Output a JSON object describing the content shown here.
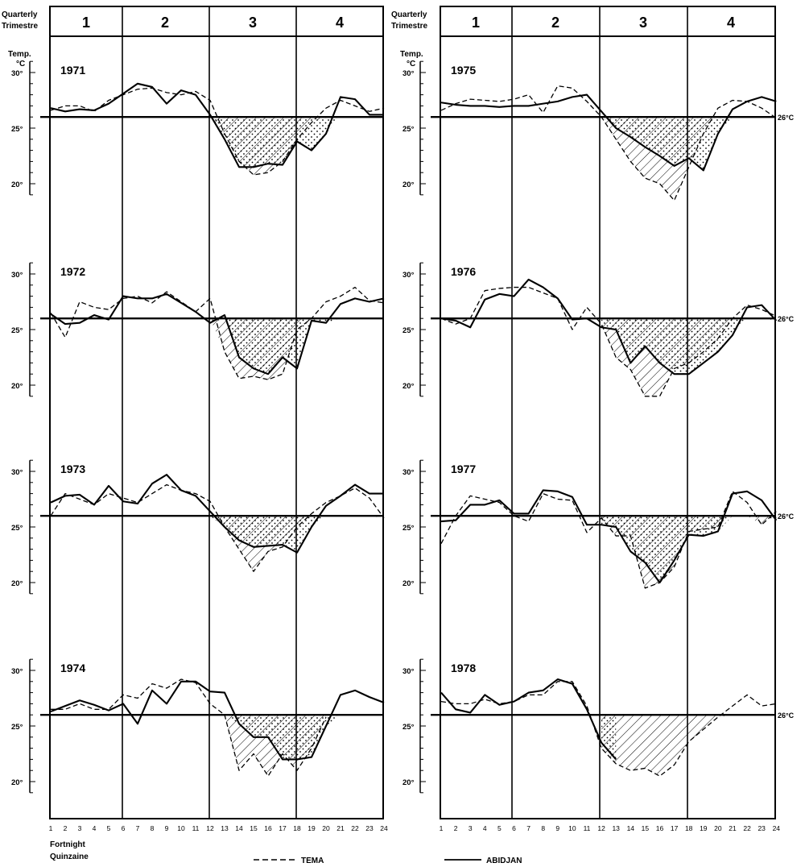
{
  "header": {
    "quarter_label_en": "Quarterly",
    "quarter_label_fr": "Trimestre",
    "quarters": [
      "1",
      "2",
      "3",
      "4"
    ]
  },
  "axis": {
    "temp_label": "Temp.",
    "temp_unit": "°C",
    "reference_label": "26°C",
    "x_label_en": "Fortnight",
    "x_label_fr": "Quinzaine"
  },
  "legend": {
    "tema": "TEMA",
    "abidjan": "ABIDJAN"
  },
  "colors": {
    "ink": "#000000",
    "background": "#ffffff"
  },
  "chart_data": [
    {
      "type": "line",
      "year": "1971",
      "column": "left",
      "row": 0,
      "reference": 26,
      "ylim": [
        19,
        31
      ],
      "ticks": [
        "30°",
        "25°",
        "20°"
      ],
      "show_ref_label": false,
      "x": [
        1,
        2,
        3,
        4,
        5,
        6,
        7,
        8,
        9,
        10,
        11,
        12,
        13,
        14,
        15,
        16,
        17,
        18,
        19,
        20,
        21,
        22,
        23,
        24
      ],
      "series": [
        {
          "name": "TEMA",
          "style": "dashed",
          "values": [
            26.6,
            27.0,
            27.0,
            26.5,
            27.5,
            28.0,
            28.5,
            28.6,
            28.2,
            28.0,
            28.3,
            27.5,
            24.5,
            22.0,
            20.8,
            21.0,
            22.0,
            24.0,
            25.5,
            26.8,
            27.5,
            27.0,
            26.5,
            26.8
          ]
        },
        {
          "name": "ABIDJAN",
          "style": "solid",
          "values": [
            26.8,
            26.5,
            26.7,
            26.6,
            27.2,
            28.1,
            29.0,
            28.7,
            27.2,
            28.4,
            28.0,
            26.2,
            24.0,
            21.5,
            21.5,
            21.8,
            21.7,
            23.8,
            23.0,
            24.5,
            27.8,
            27.6,
            26.2,
            26.2
          ]
        }
      ]
    },
    {
      "type": "line",
      "year": "1972",
      "column": "left",
      "row": 1,
      "reference": 26,
      "ylim": [
        19,
        31
      ],
      "ticks": [
        "30°",
        "25°",
        "20°"
      ],
      "show_ref_label": false,
      "x": [
        1,
        2,
        3,
        4,
        5,
        6,
        7,
        8,
        9,
        10,
        11,
        12,
        13,
        14,
        15,
        16,
        17,
        18,
        19,
        20,
        21,
        22,
        23,
        24
      ],
      "series": [
        {
          "name": "TEMA",
          "style": "dashed",
          "values": [
            26.5,
            24.3,
            27.5,
            27.0,
            26.8,
            27.8,
            28.0,
            27.4,
            28.4,
            27.5,
            26.6,
            27.8,
            23.0,
            20.6,
            20.8,
            20.5,
            21.0,
            25.0,
            26.0,
            27.5,
            28.0,
            28.8,
            27.6,
            27.4
          ]
        },
        {
          "name": "ABIDJAN",
          "style": "solid",
          "values": [
            26.4,
            25.5,
            25.6,
            26.3,
            25.9,
            28.0,
            27.8,
            27.8,
            28.2,
            27.4,
            26.6,
            25.6,
            26.3,
            22.5,
            21.5,
            21.0,
            22.5,
            21.5,
            25.8,
            25.6,
            27.3,
            27.8,
            27.5,
            27.8
          ]
        }
      ]
    },
    {
      "type": "line",
      "year": "1973",
      "column": "left",
      "row": 2,
      "reference": 26,
      "ylim": [
        19,
        31
      ],
      "ticks": [
        "30°",
        "25°",
        "20°"
      ],
      "show_ref_label": false,
      "x": [
        1,
        2,
        3,
        4,
        5,
        6,
        7,
        8,
        9,
        10,
        11,
        12,
        13,
        14,
        15,
        16,
        17,
        18,
        19,
        20,
        21,
        22,
        23,
        24
      ],
      "series": [
        {
          "name": "TEMA",
          "style": "dashed",
          "values": [
            26.0,
            28.0,
            27.5,
            27.0,
            28.0,
            27.6,
            27.2,
            28.0,
            28.8,
            28.3,
            28.0,
            27.3,
            25.0,
            23.0,
            21.0,
            22.8,
            23.2,
            25.0,
            26.2,
            27.2,
            27.8,
            28.5,
            27.6,
            25.8
          ]
        },
        {
          "name": "ABIDJAN",
          "style": "solid",
          "values": [
            27.2,
            27.8,
            27.9,
            27.0,
            28.7,
            27.3,
            27.1,
            28.9,
            29.7,
            28.3,
            27.8,
            26.4,
            25.0,
            23.8,
            23.2,
            23.3,
            23.4,
            22.7,
            25.0,
            26.9,
            27.8,
            28.8,
            28.0,
            28.0
          ]
        }
      ]
    },
    {
      "type": "line",
      "year": "1974",
      "column": "left",
      "row": 3,
      "reference": 26,
      "ylim": [
        19,
        31
      ],
      "ticks": [
        "30°",
        "25°",
        "20°"
      ],
      "show_ref_label": false,
      "x": [
        1,
        2,
        3,
        4,
        5,
        6,
        7,
        8,
        9,
        10,
        11,
        12,
        13,
        14,
        15,
        16,
        17,
        18,
        19,
        20,
        21,
        22,
        23,
        24
      ],
      "series": [
        {
          "name": "TEMA",
          "style": "dashed",
          "values": [
            26.5,
            26.5,
            27.0,
            26.5,
            26.5,
            27.8,
            27.5,
            28.8,
            28.4,
            29.2,
            28.9,
            27.0,
            26.0,
            21.0,
            22.5,
            20.5,
            22.5,
            21.0,
            23.0,
            25.8,
            null,
            null,
            null,
            null
          ]
        },
        {
          "name": "ABIDJAN",
          "style": "solid",
          "values": [
            26.3,
            26.8,
            27.3,
            26.9,
            26.4,
            27.0,
            25.2,
            28.2,
            27.0,
            29.0,
            29.0,
            28.1,
            28.0,
            25.2,
            24.0,
            24.0,
            22.0,
            22.0,
            22.2,
            25.0,
            27.8,
            28.2,
            27.6,
            27.1
          ]
        }
      ]
    },
    {
      "type": "line",
      "year": "1975",
      "column": "right",
      "row": 0,
      "reference": 26,
      "ylim": [
        19,
        31
      ],
      "ticks": [
        "30°",
        "25°",
        "20°"
      ],
      "show_ref_label": true,
      "x": [
        1,
        2,
        3,
        4,
        5,
        6,
        7,
        8,
        9,
        10,
        11,
        12,
        13,
        14,
        15,
        16,
        17,
        18,
        19,
        20,
        21,
        22,
        23,
        24
      ],
      "series": [
        {
          "name": "TEMA",
          "style": "dashed",
          "values": [
            26.6,
            27.2,
            27.6,
            27.5,
            27.4,
            27.6,
            28.0,
            26.4,
            28.8,
            28.6,
            27.4,
            26.0,
            24.0,
            22.0,
            20.5,
            20.0,
            18.5,
            21.5,
            24.5,
            26.8,
            27.5,
            27.4,
            26.8,
            25.9
          ]
        },
        {
          "name": "ABIDJAN",
          "style": "solid",
          "values": [
            27.3,
            27.1,
            27.0,
            27.0,
            26.9,
            27.0,
            27.0,
            27.2,
            27.4,
            27.8,
            28.0,
            26.5,
            25.0,
            24.2,
            23.3,
            22.5,
            21.6,
            22.3,
            21.2,
            24.5,
            26.7,
            27.4,
            27.8,
            27.4
          ]
        }
      ]
    },
    {
      "type": "line",
      "year": "1976",
      "column": "right",
      "row": 1,
      "reference": 26,
      "ylim": [
        19,
        31
      ],
      "ticks": [
        "30°",
        "25°",
        "20°"
      ],
      "show_ref_label": true,
      "x": [
        1,
        2,
        3,
        4,
        5,
        6,
        7,
        8,
        9,
        10,
        11,
        12,
        13,
        14,
        15,
        16,
        17,
        18,
        19,
        20,
        21,
        22,
        23,
        24
      ],
      "series": [
        {
          "name": "TEMA",
          "style": "dashed",
          "values": [
            26.0,
            25.5,
            26.0,
            28.5,
            28.7,
            28.8,
            28.8,
            28.3,
            27.8,
            25.0,
            27.0,
            25.5,
            22.5,
            21.4,
            19.0,
            19.0,
            21.5,
            22.0,
            23.0,
            24.2,
            26.0,
            27.2,
            26.8,
            26.2
          ]
        },
        {
          "name": "ABIDJAN",
          "style": "solid",
          "values": [
            26.0,
            25.8,
            25.2,
            27.7,
            28.2,
            28.0,
            29.5,
            28.8,
            27.8,
            25.9,
            26.0,
            25.2,
            25.0,
            22.0,
            23.5,
            22.0,
            21.0,
            21.0,
            22.0,
            23.0,
            24.5,
            27.0,
            27.2,
            25.8
          ]
        }
      ]
    },
    {
      "type": "line",
      "year": "1977",
      "column": "right",
      "row": 2,
      "reference": 26,
      "ylim": [
        19,
        31
      ],
      "ticks": [
        "30°",
        "25°",
        "20°"
      ],
      "show_ref_label": true,
      "x": [
        1,
        2,
        3,
        4,
        5,
        6,
        7,
        8,
        9,
        10,
        11,
        12,
        13,
        14,
        15,
        16,
        17,
        18,
        19,
        20,
        21,
        22,
        23,
        24
      ],
      "series": [
        {
          "name": "TEMA",
          "style": "dashed",
          "values": [
            23.5,
            26.0,
            27.8,
            27.5,
            27.2,
            26.0,
            25.5,
            28.0,
            27.5,
            27.4,
            24.5,
            25.8,
            24.2,
            24.2,
            19.5,
            20.0,
            21.4,
            24.6,
            24.8,
            25.0,
            28.2,
            27.2,
            25.2,
            26.4
          ]
        },
        {
          "name": "ABIDJAN",
          "style": "solid",
          "values": [
            25.5,
            25.6,
            27.0,
            27.0,
            27.4,
            26.2,
            26.2,
            28.3,
            28.2,
            27.7,
            25.2,
            25.2,
            25.0,
            22.8,
            21.8,
            20.0,
            22.0,
            24.3,
            24.2,
            24.6,
            28.0,
            28.2,
            27.4,
            25.6
          ]
        }
      ]
    },
    {
      "type": "line",
      "year": "1978",
      "column": "right",
      "row": 3,
      "reference": 26,
      "ylim": [
        19,
        31
      ],
      "ticks": [
        "30°",
        "25°",
        "20°"
      ],
      "show_ref_label": true,
      "x": [
        1,
        2,
        3,
        4,
        5,
        6,
        7,
        8,
        9,
        10,
        11,
        12,
        13,
        14,
        15,
        16,
        17,
        18,
        19,
        20,
        21,
        22,
        23,
        24
      ],
      "series": [
        {
          "name": "TEMA",
          "style": "dashed",
          "values": [
            27.2,
            27.0,
            27.0,
            27.4,
            27.0,
            27.2,
            27.8,
            27.8,
            29.0,
            29.0,
            26.8,
            23.0,
            21.6,
            21.0,
            21.2,
            20.5,
            21.5,
            23.6,
            24.7,
            25.8,
            26.8,
            27.8,
            26.8,
            27.0
          ]
        },
        {
          "name": "ABIDJAN",
          "style": "solid",
          "values": [
            28.0,
            26.5,
            26.2,
            27.8,
            26.9,
            27.2,
            28.0,
            28.2,
            29.2,
            28.8,
            26.5,
            23.5,
            22.0,
            null,
            null,
            null,
            null,
            null,
            null,
            null,
            null,
            null,
            null,
            null
          ]
        }
      ]
    }
  ]
}
